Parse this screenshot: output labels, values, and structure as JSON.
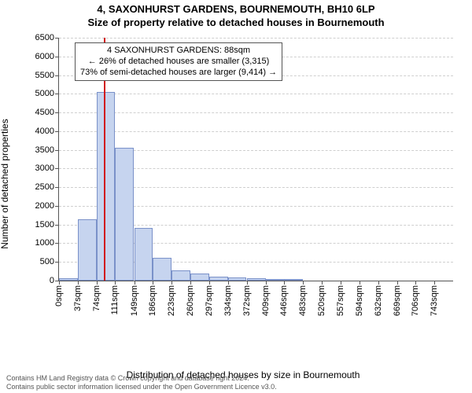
{
  "title_line1": "4, SAXONHURST GARDENS, BOURNEMOUTH, BH10 6LP",
  "title_line2": "Size of property relative to detached houses in Bournemouth",
  "chart": {
    "type": "histogram",
    "ylabel": "Number of detached properties",
    "xlabel": "Distribution of detached houses by size in Bournemouth",
    "ylim": [
      0,
      6500
    ],
    "yticks": [
      0,
      500,
      1000,
      1500,
      2000,
      2500,
      3000,
      3500,
      4000,
      4500,
      5000,
      5500,
      6000,
      6500
    ],
    "xlim": [
      0,
      780
    ],
    "xticks": [
      0,
      37,
      74,
      111,
      149,
      186,
      223,
      260,
      297,
      334,
      372,
      409,
      446,
      483,
      520,
      557,
      594,
      632,
      669,
      706,
      743
    ],
    "xtick_suffix": "sqm",
    "bar_width_units": 37,
    "bars": [
      {
        "x0": 0,
        "count": 60
      },
      {
        "x0": 37,
        "count": 1650
      },
      {
        "x0": 74,
        "count": 5050
      },
      {
        "x0": 111,
        "count": 3550
      },
      {
        "x0": 149,
        "count": 1400
      },
      {
        "x0": 186,
        "count": 600
      },
      {
        "x0": 223,
        "count": 280
      },
      {
        "x0": 260,
        "count": 180
      },
      {
        "x0": 297,
        "count": 110
      },
      {
        "x0": 334,
        "count": 80
      },
      {
        "x0": 372,
        "count": 70
      },
      {
        "x0": 409,
        "count": 50
      },
      {
        "x0": 446,
        "count": 25
      }
    ],
    "bar_fill": "#c6d4ef",
    "bar_border": "#7a91c9",
    "grid_color": "#cfcfcf",
    "axis_color": "#555555",
    "marker_x": 88,
    "marker_color": "#d11a1a",
    "background_color": "#ffffff",
    "ytick_fontsize": 11,
    "xtick_fontsize": 11,
    "label_fontsize": 12
  },
  "annotation": {
    "line1": "4 SAXONHURST GARDENS: 88sqm",
    "line2": "← 26% of detached houses are smaller (3,315)",
    "line3": "73% of semi-detached houses are larger (9,414) →",
    "border_color": "#555555",
    "background": "#ffffff",
    "fontsize": 11
  },
  "footer": {
    "line1": "Contains HM Land Registry data © Crown copyright and database right 2024.",
    "line2": "Contains public sector information licensed under the Open Government Licence v3.0.",
    "color": "#555555",
    "fontsize": 9
  }
}
